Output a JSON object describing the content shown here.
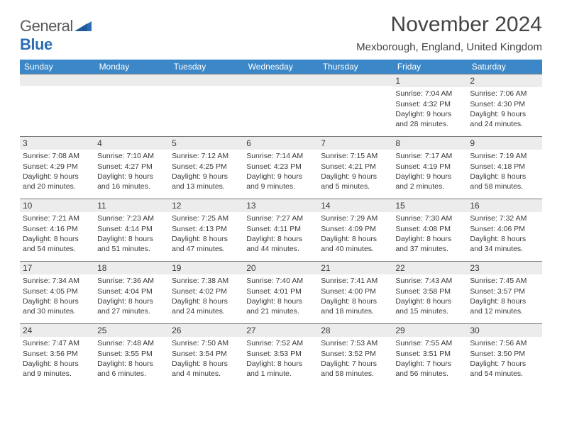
{
  "brand": {
    "word1": "General",
    "word2": "Blue"
  },
  "title": "November 2024",
  "location": "Mexborough, England, United Kingdom",
  "colors": {
    "header_bg": "#3c87c7",
    "header_text": "#ffffff",
    "daynum_bg": "#ececec",
    "text": "#3a3a3a",
    "rule": "#7a7a7a",
    "brand_gray": "#5a5a5a",
    "brand_blue": "#2a6db5",
    "page_bg": "#ffffff"
  },
  "typography": {
    "title_fontsize": 30,
    "location_fontsize": 15,
    "weekday_fontsize": 12,
    "daynum_fontsize": 12,
    "body_fontsize": 10.5
  },
  "weekdays": [
    "Sunday",
    "Monday",
    "Tuesday",
    "Wednesday",
    "Thursday",
    "Friday",
    "Saturday"
  ],
  "weeks": [
    [
      {
        "n": "",
        "sr": "",
        "ss": "",
        "dl": ""
      },
      {
        "n": "",
        "sr": "",
        "ss": "",
        "dl": ""
      },
      {
        "n": "",
        "sr": "",
        "ss": "",
        "dl": ""
      },
      {
        "n": "",
        "sr": "",
        "ss": "",
        "dl": ""
      },
      {
        "n": "",
        "sr": "",
        "ss": "",
        "dl": ""
      },
      {
        "n": "1",
        "sr": "Sunrise: 7:04 AM",
        "ss": "Sunset: 4:32 PM",
        "dl": "Daylight: 9 hours and 28 minutes."
      },
      {
        "n": "2",
        "sr": "Sunrise: 7:06 AM",
        "ss": "Sunset: 4:30 PM",
        "dl": "Daylight: 9 hours and 24 minutes."
      }
    ],
    [
      {
        "n": "3",
        "sr": "Sunrise: 7:08 AM",
        "ss": "Sunset: 4:29 PM",
        "dl": "Daylight: 9 hours and 20 minutes."
      },
      {
        "n": "4",
        "sr": "Sunrise: 7:10 AM",
        "ss": "Sunset: 4:27 PM",
        "dl": "Daylight: 9 hours and 16 minutes."
      },
      {
        "n": "5",
        "sr": "Sunrise: 7:12 AM",
        "ss": "Sunset: 4:25 PM",
        "dl": "Daylight: 9 hours and 13 minutes."
      },
      {
        "n": "6",
        "sr": "Sunrise: 7:14 AM",
        "ss": "Sunset: 4:23 PM",
        "dl": "Daylight: 9 hours and 9 minutes."
      },
      {
        "n": "7",
        "sr": "Sunrise: 7:15 AM",
        "ss": "Sunset: 4:21 PM",
        "dl": "Daylight: 9 hours and 5 minutes."
      },
      {
        "n": "8",
        "sr": "Sunrise: 7:17 AM",
        "ss": "Sunset: 4:19 PM",
        "dl": "Daylight: 9 hours and 2 minutes."
      },
      {
        "n": "9",
        "sr": "Sunrise: 7:19 AM",
        "ss": "Sunset: 4:18 PM",
        "dl": "Daylight: 8 hours and 58 minutes."
      }
    ],
    [
      {
        "n": "10",
        "sr": "Sunrise: 7:21 AM",
        "ss": "Sunset: 4:16 PM",
        "dl": "Daylight: 8 hours and 54 minutes."
      },
      {
        "n": "11",
        "sr": "Sunrise: 7:23 AM",
        "ss": "Sunset: 4:14 PM",
        "dl": "Daylight: 8 hours and 51 minutes."
      },
      {
        "n": "12",
        "sr": "Sunrise: 7:25 AM",
        "ss": "Sunset: 4:13 PM",
        "dl": "Daylight: 8 hours and 47 minutes."
      },
      {
        "n": "13",
        "sr": "Sunrise: 7:27 AM",
        "ss": "Sunset: 4:11 PM",
        "dl": "Daylight: 8 hours and 44 minutes."
      },
      {
        "n": "14",
        "sr": "Sunrise: 7:29 AM",
        "ss": "Sunset: 4:09 PM",
        "dl": "Daylight: 8 hours and 40 minutes."
      },
      {
        "n": "15",
        "sr": "Sunrise: 7:30 AM",
        "ss": "Sunset: 4:08 PM",
        "dl": "Daylight: 8 hours and 37 minutes."
      },
      {
        "n": "16",
        "sr": "Sunrise: 7:32 AM",
        "ss": "Sunset: 4:06 PM",
        "dl": "Daylight: 8 hours and 34 minutes."
      }
    ],
    [
      {
        "n": "17",
        "sr": "Sunrise: 7:34 AM",
        "ss": "Sunset: 4:05 PM",
        "dl": "Daylight: 8 hours and 30 minutes."
      },
      {
        "n": "18",
        "sr": "Sunrise: 7:36 AM",
        "ss": "Sunset: 4:04 PM",
        "dl": "Daylight: 8 hours and 27 minutes."
      },
      {
        "n": "19",
        "sr": "Sunrise: 7:38 AM",
        "ss": "Sunset: 4:02 PM",
        "dl": "Daylight: 8 hours and 24 minutes."
      },
      {
        "n": "20",
        "sr": "Sunrise: 7:40 AM",
        "ss": "Sunset: 4:01 PM",
        "dl": "Daylight: 8 hours and 21 minutes."
      },
      {
        "n": "21",
        "sr": "Sunrise: 7:41 AM",
        "ss": "Sunset: 4:00 PM",
        "dl": "Daylight: 8 hours and 18 minutes."
      },
      {
        "n": "22",
        "sr": "Sunrise: 7:43 AM",
        "ss": "Sunset: 3:58 PM",
        "dl": "Daylight: 8 hours and 15 minutes."
      },
      {
        "n": "23",
        "sr": "Sunrise: 7:45 AM",
        "ss": "Sunset: 3:57 PM",
        "dl": "Daylight: 8 hours and 12 minutes."
      }
    ],
    [
      {
        "n": "24",
        "sr": "Sunrise: 7:47 AM",
        "ss": "Sunset: 3:56 PM",
        "dl": "Daylight: 8 hours and 9 minutes."
      },
      {
        "n": "25",
        "sr": "Sunrise: 7:48 AM",
        "ss": "Sunset: 3:55 PM",
        "dl": "Daylight: 8 hours and 6 minutes."
      },
      {
        "n": "26",
        "sr": "Sunrise: 7:50 AM",
        "ss": "Sunset: 3:54 PM",
        "dl": "Daylight: 8 hours and 4 minutes."
      },
      {
        "n": "27",
        "sr": "Sunrise: 7:52 AM",
        "ss": "Sunset: 3:53 PM",
        "dl": "Daylight: 8 hours and 1 minute."
      },
      {
        "n": "28",
        "sr": "Sunrise: 7:53 AM",
        "ss": "Sunset: 3:52 PM",
        "dl": "Daylight: 7 hours and 58 minutes."
      },
      {
        "n": "29",
        "sr": "Sunrise: 7:55 AM",
        "ss": "Sunset: 3:51 PM",
        "dl": "Daylight: 7 hours and 56 minutes."
      },
      {
        "n": "30",
        "sr": "Sunrise: 7:56 AM",
        "ss": "Sunset: 3:50 PM",
        "dl": "Daylight: 7 hours and 54 minutes."
      }
    ]
  ]
}
